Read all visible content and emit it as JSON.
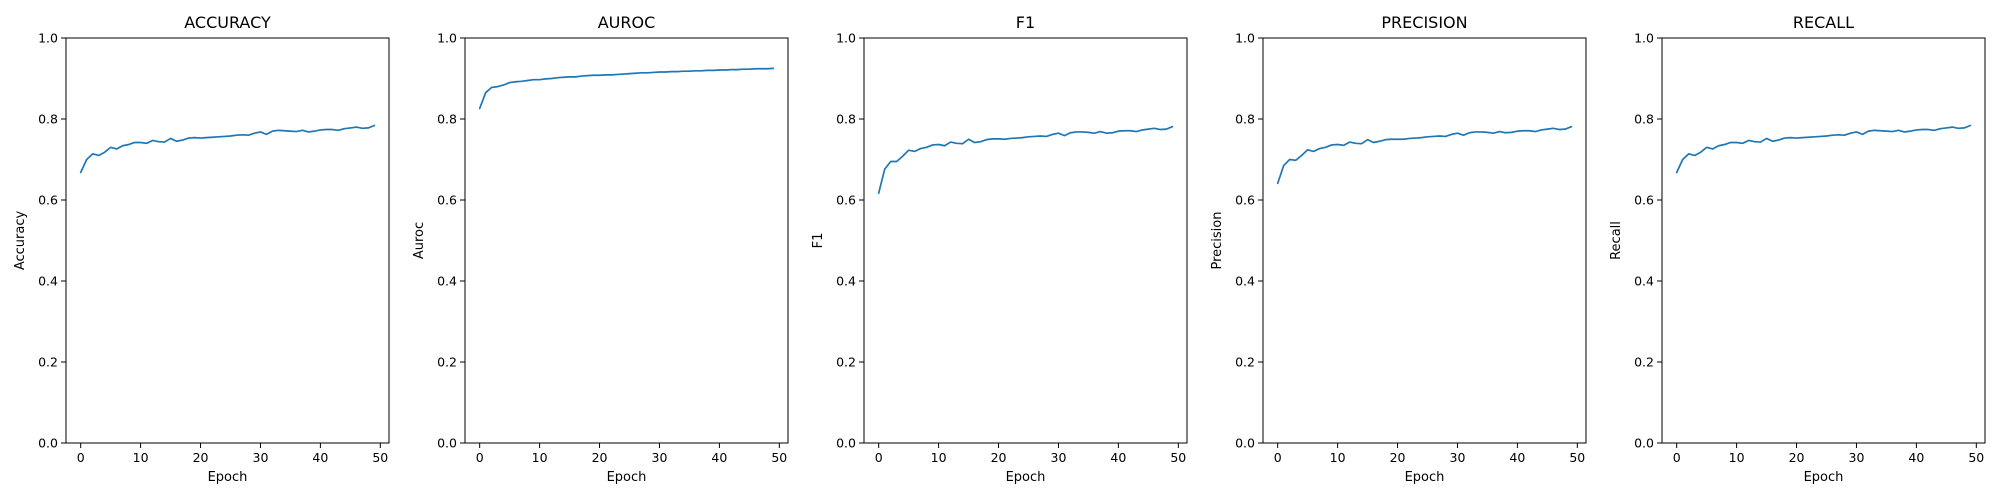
{
  "figure": {
    "line_color": "#1f77b4"
  },
  "chart_data": [
    {
      "type": "line",
      "title": "ACCURACY",
      "xlabel": "Epoch",
      "ylabel": "Accuracy",
      "xlim": [
        -2.45,
        51.45
      ],
      "ylim": [
        0.0,
        1.0
      ],
      "xticks": [
        "0",
        "10",
        "20",
        "30",
        "40",
        "50"
      ],
      "yticks": [
        "0.0",
        "0.2",
        "0.4",
        "0.6",
        "0.8",
        "1.0"
      ],
      "grid": false,
      "series": [
        {
          "x": [
            0,
            1,
            2,
            3,
            4,
            5,
            6,
            7,
            8,
            9,
            10,
            11,
            12,
            13,
            14,
            15,
            16,
            17,
            18,
            19,
            20,
            21,
            22,
            23,
            24,
            25,
            26,
            27,
            28,
            29,
            30,
            31,
            32,
            33,
            34,
            35,
            36,
            37,
            38,
            39,
            40,
            41,
            42,
            43,
            44,
            45,
            46,
            47,
            48,
            49
          ],
          "values": [
            0.668,
            0.7,
            0.714,
            0.71,
            0.718,
            0.73,
            0.726,
            0.734,
            0.737,
            0.742,
            0.742,
            0.74,
            0.747,
            0.744,
            0.743,
            0.752,
            0.745,
            0.748,
            0.753,
            0.754,
            0.753,
            0.754,
            0.755,
            0.756,
            0.757,
            0.758,
            0.76,
            0.761,
            0.76,
            0.765,
            0.768,
            0.762,
            0.77,
            0.772,
            0.771,
            0.77,
            0.769,
            0.772,
            0.768,
            0.77,
            0.773,
            0.774,
            0.774,
            0.772,
            0.776,
            0.778,
            0.78,
            0.777,
            0.778,
            0.784
          ]
        }
      ]
    },
    {
      "type": "line",
      "title": "AUROC",
      "xlabel": "Epoch",
      "ylabel": "Auroc",
      "xlim": [
        -2.45,
        51.45
      ],
      "ylim": [
        0.0,
        1.0
      ],
      "xticks": [
        "0",
        "10",
        "20",
        "30",
        "40",
        "50"
      ],
      "yticks": [
        "0.0",
        "0.2",
        "0.4",
        "0.6",
        "0.8",
        "1.0"
      ],
      "grid": false,
      "series": [
        {
          "x": [
            0,
            1,
            2,
            3,
            4,
            5,
            6,
            7,
            8,
            9,
            10,
            11,
            12,
            13,
            14,
            15,
            16,
            17,
            18,
            19,
            20,
            21,
            22,
            23,
            24,
            25,
            26,
            27,
            28,
            29,
            30,
            31,
            32,
            33,
            34,
            35,
            36,
            37,
            38,
            39,
            40,
            41,
            42,
            43,
            44,
            45,
            46,
            47,
            48,
            49
          ],
          "values": [
            0.826,
            0.865,
            0.878,
            0.88,
            0.884,
            0.89,
            0.892,
            0.893,
            0.895,
            0.897,
            0.897,
            0.899,
            0.9,
            0.902,
            0.903,
            0.904,
            0.904,
            0.906,
            0.907,
            0.908,
            0.908,
            0.909,
            0.909,
            0.91,
            0.911,
            0.912,
            0.913,
            0.914,
            0.914,
            0.915,
            0.916,
            0.916,
            0.917,
            0.917,
            0.918,
            0.918,
            0.919,
            0.919,
            0.92,
            0.92,
            0.921,
            0.921,
            0.922,
            0.922,
            0.923,
            0.923,
            0.924,
            0.924,
            0.924,
            0.925
          ]
        }
      ]
    },
    {
      "type": "line",
      "title": "F1",
      "xlabel": "Epoch",
      "ylabel": "F1",
      "xlim": [
        -2.45,
        51.45
      ],
      "ylim": [
        0.0,
        1.0
      ],
      "xticks": [
        "0",
        "10",
        "20",
        "30",
        "40",
        "50"
      ],
      "yticks": [
        "0.0",
        "0.2",
        "0.4",
        "0.6",
        "0.8",
        "1.0"
      ],
      "grid": false,
      "series": [
        {
          "x": [
            0,
            1,
            2,
            3,
            4,
            5,
            6,
            7,
            8,
            9,
            10,
            11,
            12,
            13,
            14,
            15,
            16,
            17,
            18,
            19,
            20,
            21,
            22,
            23,
            24,
            25,
            26,
            27,
            28,
            29,
            30,
            31,
            32,
            33,
            34,
            35,
            36,
            37,
            38,
            39,
            40,
            41,
            42,
            43,
            44,
            45,
            46,
            47,
            48,
            49
          ],
          "values": [
            0.617,
            0.676,
            0.695,
            0.695,
            0.708,
            0.723,
            0.72,
            0.727,
            0.73,
            0.736,
            0.737,
            0.734,
            0.743,
            0.74,
            0.739,
            0.75,
            0.742,
            0.744,
            0.749,
            0.751,
            0.751,
            0.75,
            0.752,
            0.753,
            0.754,
            0.756,
            0.757,
            0.758,
            0.757,
            0.762,
            0.765,
            0.759,
            0.766,
            0.768,
            0.768,
            0.767,
            0.765,
            0.769,
            0.765,
            0.766,
            0.77,
            0.771,
            0.771,
            0.769,
            0.773,
            0.775,
            0.777,
            0.774,
            0.775,
            0.781
          ]
        }
      ]
    },
    {
      "type": "line",
      "title": "PRECISION",
      "xlabel": "Epoch",
      "ylabel": "Precision",
      "xlim": [
        -2.45,
        51.45
      ],
      "ylim": [
        0.0,
        1.0
      ],
      "xticks": [
        "0",
        "10",
        "20",
        "30",
        "40",
        "50"
      ],
      "yticks": [
        "0.0",
        "0.2",
        "0.4",
        "0.6",
        "0.8",
        "1.0"
      ],
      "grid": false,
      "series": [
        {
          "x": [
            0,
            1,
            2,
            3,
            4,
            5,
            6,
            7,
            8,
            9,
            10,
            11,
            12,
            13,
            14,
            15,
            16,
            17,
            18,
            19,
            20,
            21,
            22,
            23,
            24,
            25,
            26,
            27,
            28,
            29,
            30,
            31,
            32,
            33,
            34,
            35,
            36,
            37,
            38,
            39,
            40,
            41,
            42,
            43,
            44,
            45,
            46,
            47,
            48,
            49
          ],
          "values": [
            0.641,
            0.685,
            0.7,
            0.698,
            0.71,
            0.724,
            0.72,
            0.727,
            0.73,
            0.736,
            0.737,
            0.735,
            0.743,
            0.74,
            0.739,
            0.749,
            0.742,
            0.745,
            0.749,
            0.75,
            0.75,
            0.75,
            0.752,
            0.753,
            0.754,
            0.756,
            0.757,
            0.758,
            0.757,
            0.762,
            0.765,
            0.76,
            0.766,
            0.768,
            0.768,
            0.767,
            0.765,
            0.769,
            0.766,
            0.767,
            0.77,
            0.771,
            0.771,
            0.769,
            0.773,
            0.775,
            0.777,
            0.774,
            0.775,
            0.781
          ]
        }
      ]
    },
    {
      "type": "line",
      "title": "RECALL",
      "xlabel": "Epoch",
      "ylabel": "Recall",
      "xlim": [
        -2.45,
        51.45
      ],
      "ylim": [
        0.0,
        1.0
      ],
      "xticks": [
        "0",
        "10",
        "20",
        "30",
        "40",
        "50"
      ],
      "yticks": [
        "0.0",
        "0.2",
        "0.4",
        "0.6",
        "0.8",
        "1.0"
      ],
      "grid": false,
      "series": [
        {
          "x": [
            0,
            1,
            2,
            3,
            4,
            5,
            6,
            7,
            8,
            9,
            10,
            11,
            12,
            13,
            14,
            15,
            16,
            17,
            18,
            19,
            20,
            21,
            22,
            23,
            24,
            25,
            26,
            27,
            28,
            29,
            30,
            31,
            32,
            33,
            34,
            35,
            36,
            37,
            38,
            39,
            40,
            41,
            42,
            43,
            44,
            45,
            46,
            47,
            48,
            49
          ],
          "values": [
            0.668,
            0.7,
            0.714,
            0.71,
            0.718,
            0.73,
            0.726,
            0.734,
            0.737,
            0.742,
            0.742,
            0.74,
            0.747,
            0.744,
            0.743,
            0.752,
            0.745,
            0.748,
            0.753,
            0.754,
            0.753,
            0.754,
            0.755,
            0.756,
            0.757,
            0.758,
            0.76,
            0.761,
            0.76,
            0.765,
            0.768,
            0.762,
            0.77,
            0.772,
            0.771,
            0.77,
            0.769,
            0.772,
            0.768,
            0.77,
            0.773,
            0.774,
            0.774,
            0.772,
            0.776,
            0.778,
            0.78,
            0.777,
            0.778,
            0.784
          ]
        }
      ]
    }
  ]
}
